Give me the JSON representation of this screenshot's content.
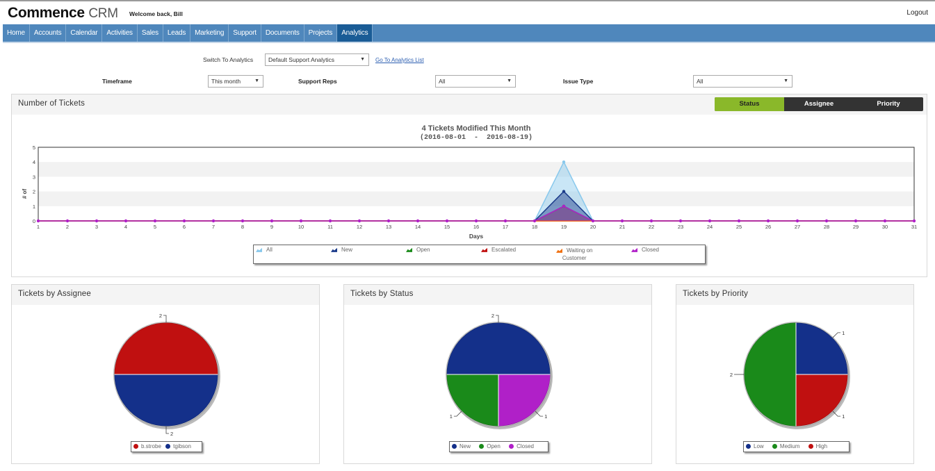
{
  "header": {
    "brand_main": "Commence",
    "brand_sub": "CRM",
    "welcome": "Welcome back, Bill",
    "logout": "Logout"
  },
  "nav": [
    "Home",
    "Accounts",
    "Calendar",
    "Activities",
    "Sales",
    "Leads",
    "Marketing",
    "Support",
    "Documents",
    "Projects",
    "Analytics"
  ],
  "filters": {
    "switch_label": "Switch To Analytics",
    "switch_value": "Default Support Analytics",
    "analytics_link": "Go To Analytics List",
    "timeframe_label": "Timeframe",
    "timeframe_value": "This month",
    "reps_label": "Support Reps",
    "reps_value": "All",
    "issue_label": "Issue Type",
    "issue_value": "All"
  },
  "tickets_panel": {
    "title": "Number of Tickets",
    "toggle": [
      "Status",
      "Assignee",
      "Priority"
    ]
  },
  "colors": {
    "all": "#88c8ec",
    "new": "#1a3a8a",
    "open": "#1a8a1a",
    "escalated": "#c01010",
    "waiting": "#f07010",
    "closed": "#b020c8"
  },
  "chart_data": [
    {
      "type": "area",
      "title": "4 Tickets Modified This Month",
      "subtitle": "(2016-08-01  -  2016-08-19)",
      "xlabel": "Days",
      "ylabel": "# of",
      "ylim": [
        0,
        5
      ],
      "yticks": [
        0,
        1,
        2,
        3,
        4,
        5
      ],
      "x": [
        1,
        2,
        3,
        4,
        5,
        6,
        7,
        8,
        9,
        10,
        11,
        12,
        13,
        14,
        15,
        16,
        17,
        18,
        19,
        20,
        21,
        22,
        23,
        24,
        25,
        26,
        27,
        28,
        29,
        30,
        31
      ],
      "series": [
        {
          "name": "All",
          "color": "#88c8ec",
          "values": [
            0,
            0,
            0,
            0,
            0,
            0,
            0,
            0,
            0,
            0,
            0,
            0,
            0,
            0,
            0,
            0,
            0,
            0,
            4,
            0,
            0,
            0,
            0,
            0,
            0,
            0,
            0,
            0,
            0,
            0,
            0
          ]
        },
        {
          "name": "New",
          "color": "#1a3a8a",
          "values": [
            0,
            0,
            0,
            0,
            0,
            0,
            0,
            0,
            0,
            0,
            0,
            0,
            0,
            0,
            0,
            0,
            0,
            0,
            2,
            0,
            0,
            0,
            0,
            0,
            0,
            0,
            0,
            0,
            0,
            0,
            0
          ]
        },
        {
          "name": "Open",
          "color": "#1a8a1a",
          "values": [
            0,
            0,
            0,
            0,
            0,
            0,
            0,
            0,
            0,
            0,
            0,
            0,
            0,
            0,
            0,
            0,
            0,
            0,
            1,
            0,
            0,
            0,
            0,
            0,
            0,
            0,
            0,
            0,
            0,
            0,
            0
          ]
        },
        {
          "name": "Escalated",
          "color": "#c01010",
          "values": [
            0,
            0,
            0,
            0,
            0,
            0,
            0,
            0,
            0,
            0,
            0,
            0,
            0,
            0,
            0,
            0,
            0,
            0,
            0,
            0,
            0,
            0,
            0,
            0,
            0,
            0,
            0,
            0,
            0,
            0,
            0
          ]
        },
        {
          "name": "Waiting on Customer",
          "color": "#f07010",
          "values": [
            0,
            0,
            0,
            0,
            0,
            0,
            0,
            0,
            0,
            0,
            0,
            0,
            0,
            0,
            0,
            0,
            0,
            0,
            0,
            0,
            0,
            0,
            0,
            0,
            0,
            0,
            0,
            0,
            0,
            0,
            0
          ]
        },
        {
          "name": "Closed",
          "color": "#b020c8",
          "values": [
            0,
            0,
            0,
            0,
            0,
            0,
            0,
            0,
            0,
            0,
            0,
            0,
            0,
            0,
            0,
            0,
            0,
            0,
            1,
            0,
            0,
            0,
            0,
            0,
            0,
            0,
            0,
            0,
            0,
            0,
            0
          ]
        }
      ],
      "legend": [
        "All",
        "New",
        "Open",
        "Escalated",
        "Waiting on",
        "Customer",
        "Closed"
      ]
    },
    {
      "type": "pie",
      "title": "Tickets by Assignee",
      "slices": [
        {
          "label": "b.strobe",
          "value": 2,
          "color": "#c01010"
        },
        {
          "label": "tgibson",
          "value": 2,
          "color": "#14308a"
        }
      ],
      "labels": [
        "2",
        "2"
      ]
    },
    {
      "type": "pie",
      "title": "Tickets by Status",
      "slices": [
        {
          "label": "New",
          "value": 2,
          "color": "#14308a"
        },
        {
          "label": "Closed",
          "value": 1,
          "color": "#b020c8"
        },
        {
          "label": "Open",
          "value": 1,
          "color": "#1a8a1a"
        }
      ],
      "labels": [
        "2",
        "1",
        "1"
      ]
    },
    {
      "type": "pie",
      "title": "Tickets by Priority",
      "slices": [
        {
          "label": "Low",
          "value": 1,
          "color": "#14308a"
        },
        {
          "label": "High",
          "value": 1,
          "color": "#c01010"
        },
        {
          "label": "Medium",
          "value": 2,
          "color": "#1a8a1a"
        }
      ],
      "labels": [
        "1",
        "1",
        "2"
      ]
    }
  ]
}
